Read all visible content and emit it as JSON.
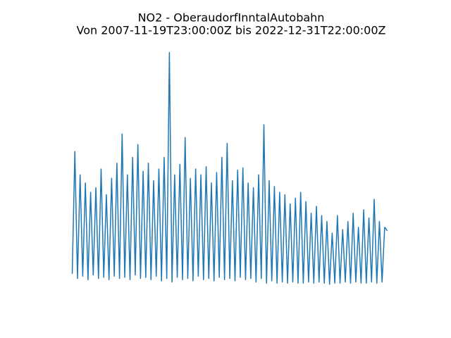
{
  "chart_data": {
    "type": "line",
    "title": "NO2 - OberaudorfInntalAutobahn",
    "subtitle": "Von 2007-11-19T23:00:00Z bis 2022-12-31T22:00:00Z",
    "x": [
      2007.875,
      2008,
      2008.125,
      2008.25,
      2008.375,
      2008.5,
      2008.625,
      2008.75,
      2008.875,
      2009,
      2009.125,
      2009.25,
      2009.375,
      2009.5,
      2009.625,
      2009.75,
      2009.875,
      2010,
      2010.125,
      2010.25,
      2010.375,
      2010.5,
      2010.625,
      2010.75,
      2010.875,
      2011,
      2011.125,
      2011.25,
      2011.375,
      2011.5,
      2011.625,
      2011.75,
      2011.875,
      2012,
      2012.125,
      2012.25,
      2012.375,
      2012.5,
      2012.625,
      2012.75,
      2012.875,
      2013,
      2013.125,
      2013.25,
      2013.375,
      2013.5,
      2013.625,
      2013.75,
      2013.875,
      2014,
      2014.125,
      2014.25,
      2014.375,
      2014.5,
      2014.625,
      2014.75,
      2014.875,
      2015,
      2015.125,
      2015.25,
      2015.375,
      2015.5,
      2015.625,
      2015.75,
      2015.875,
      2016,
      2016.125,
      2016.25,
      2016.375,
      2016.5,
      2016.625,
      2016.75,
      2016.875,
      2017,
      2017.125,
      2017.25,
      2017.375,
      2017.5,
      2017.625,
      2017.75,
      2017.875,
      2018,
      2018.125,
      2018.25,
      2018.375,
      2018.5,
      2018.625,
      2018.75,
      2018.875,
      2019,
      2019.125,
      2019.25,
      2019.375,
      2019.5,
      2019.625,
      2019.75,
      2019.875,
      2020,
      2020.125,
      2020.25,
      2020.375,
      2020.5,
      2020.625,
      2020.75,
      2020.875,
      2021,
      2021.125,
      2021.25,
      2021.375,
      2021.5,
      2021.625,
      2021.75,
      2021.875,
      2022,
      2022.125,
      2022.25,
      2022.375,
      2022.5,
      2022.625,
      2022.75,
      2022.875
    ],
    "series": [
      {
        "color": "#1f77b4",
        "values": [
          10,
          115,
          6,
          95,
          8,
          88,
          5,
          80,
          9,
          84,
          6,
          100,
          7,
          78,
          5,
          92,
          8,
          105,
          6,
          130,
          7,
          95,
          5,
          110,
          9,
          121,
          6,
          98,
          7,
          105,
          5,
          90,
          8,
          100,
          4,
          110,
          6,
          200,
          3,
          95,
          7,
          104,
          5,
          127,
          6,
          92,
          4,
          100,
          8,
          95,
          5,
          102,
          6,
          88,
          4,
          97,
          7,
          110,
          5,
          122,
          6,
          90,
          4,
          99,
          7,
          101,
          5,
          88,
          6,
          84,
          3,
          95,
          6,
          138,
          2,
          90,
          4,
          85,
          2,
          80,
          3,
          78,
          2,
          70,
          3,
          75,
          2,
          80,
          2,
          72,
          3,
          62,
          2,
          68,
          3,
          60,
          2,
          55,
          1,
          45,
          2,
          60,
          2,
          48,
          3,
          55,
          2,
          62,
          3,
          50,
          2,
          65,
          2,
          58,
          3,
          74,
          2,
          55,
          3,
          50,
          47
        ]
      }
    ],
    "xlim": [
      2007.12,
      2023.76
    ],
    "ylim": [
      -10,
      210
    ]
  }
}
